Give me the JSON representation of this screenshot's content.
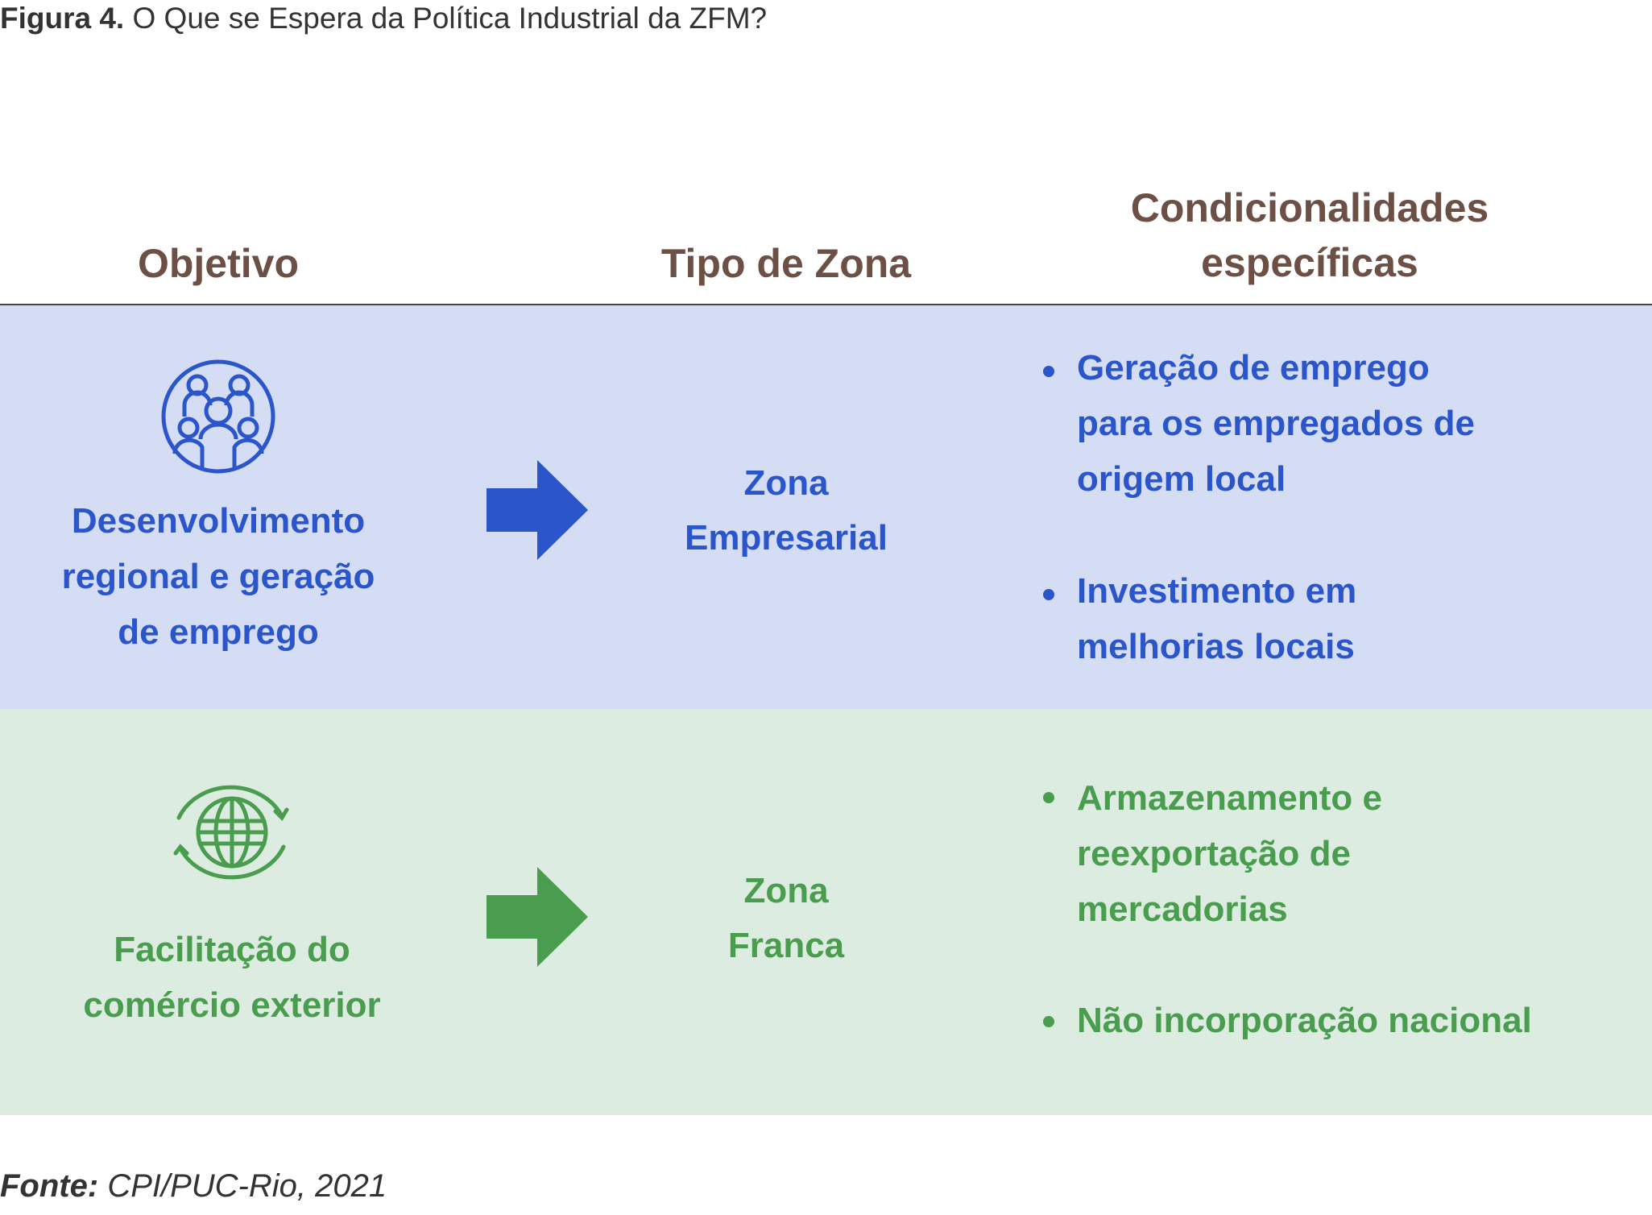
{
  "title": {
    "label": "Figura 4.",
    "text": "O Que se Espera da Política Industrial da ZFM?"
  },
  "headers": {
    "objective": "Objetivo",
    "zone_type": "Tipo de Zona",
    "conditions_line1": "Condicionalidades",
    "conditions_line2": "específicas"
  },
  "colors": {
    "blue": "#2b55cb",
    "blue_band": "#d5ddf5",
    "green": "#4a9d4f",
    "green_band": "#dcece0",
    "header": "#6d5045"
  },
  "rows": [
    {
      "icon": "people-group-icon",
      "objective": [
        "Desenvolvimento",
        "regional e geração",
        "de emprego"
      ],
      "zone": [
        "Zona",
        "Empresarial"
      ],
      "conditions": [
        [
          "Geração de emprego",
          "para os empregados de",
          "origem local"
        ],
        [
          "Investimento em",
          "melhorias locais"
        ]
      ]
    },
    {
      "icon": "globe-exchange-icon",
      "objective": [
        "Facilitação do",
        "comércio exterior"
      ],
      "zone": [
        "Zona",
        "Franca"
      ],
      "conditions": [
        [
          "Armazenamento e",
          "reexportação de",
          "mercadorias"
        ],
        [
          "Não incorporação nacional"
        ]
      ]
    }
  ],
  "source": {
    "label": "Fonte:",
    "text": "CPI/PUC-Rio, 2021"
  }
}
